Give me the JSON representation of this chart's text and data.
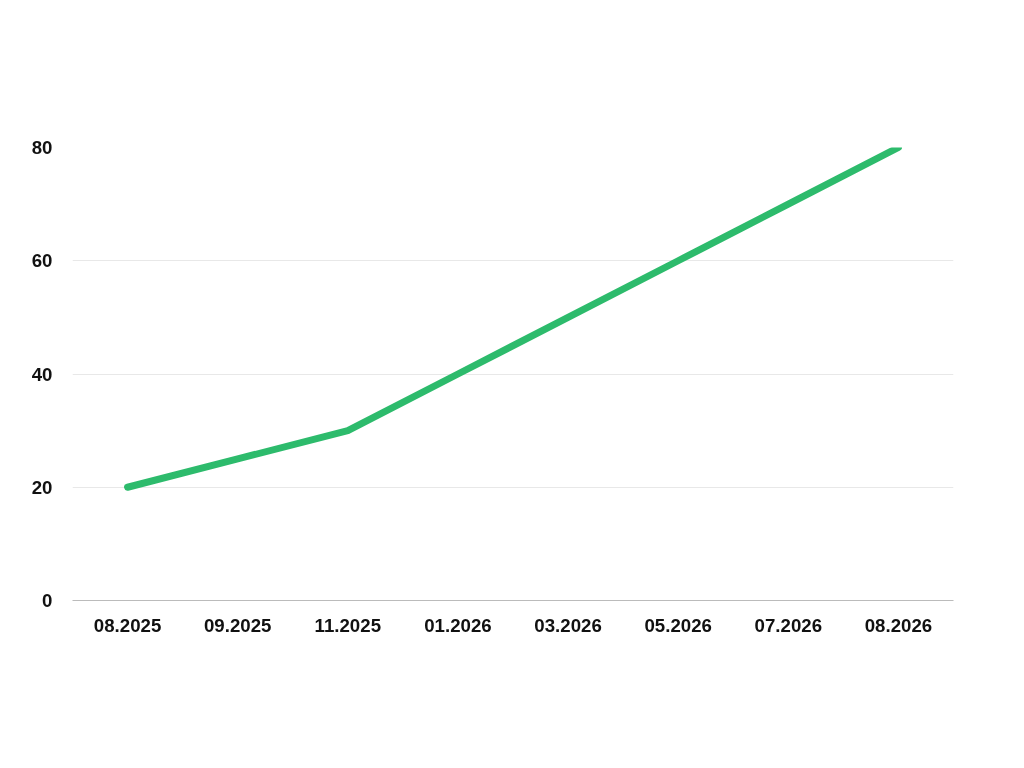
{
  "chart_data": {
    "type": "line",
    "categories": [
      "08.2025",
      "09.2025",
      "11.2025",
      "01.2026",
      "03.2026",
      "05.2026",
      "07.2026",
      "08.2026"
    ],
    "series": [
      {
        "color": "#2dbb6c",
        "values": [
          20,
          25,
          30,
          40,
          50,
          60,
          70,
          80
        ]
      }
    ],
    "ylim": [
      0,
      80
    ],
    "yticks": [
      0,
      20,
      40,
      60,
      80
    ],
    "grid": "y",
    "marker": "none",
    "line_style": "solid"
  }
}
